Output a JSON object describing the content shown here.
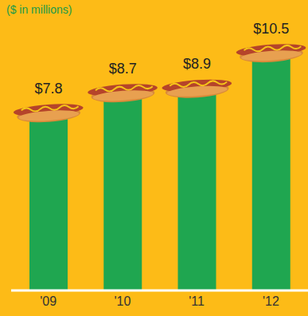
{
  "chart_data": {
    "type": "bar",
    "subtitle": "($ in millions)",
    "categories": [
      "'09",
      "'10",
      "'11",
      "'12"
    ],
    "values": [
      7.8,
      8.7,
      8.9,
      10.5
    ],
    "value_labels": [
      "$7.8",
      "$8.7",
      "$8.9",
      "$10.5"
    ],
    "data_labels": true,
    "color": "#1fa650",
    "ylim": [
      0,
      12
    ],
    "tick_labels": "x",
    "grid": false
  }
}
